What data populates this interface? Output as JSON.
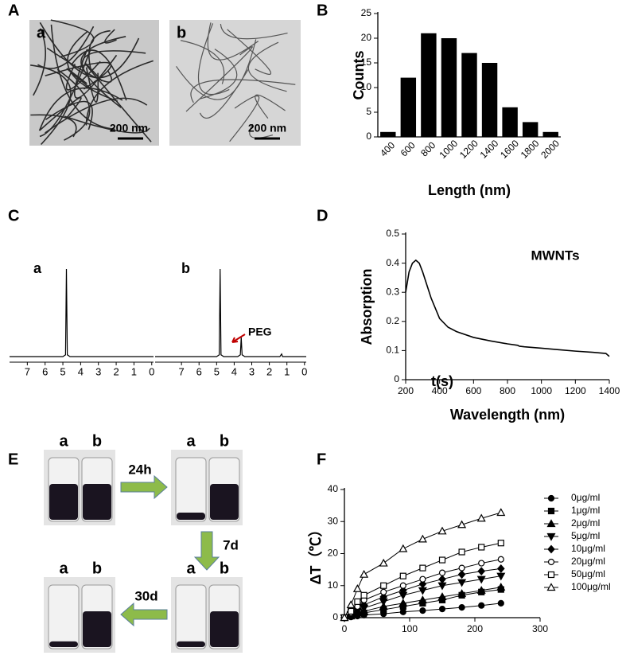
{
  "panel_a": {
    "panel": "A",
    "images": [
      {
        "label": "a",
        "scale_bar": "200 nm"
      },
      {
        "label": "b",
        "scale_bar": "200 nm"
      }
    ]
  },
  "panel_e": {
    "panel": "E",
    "vial_labels": [
      "a",
      "b"
    ],
    "steps": [
      "24h",
      "7d",
      "30d"
    ]
  },
  "chart_data": [
    {
      "type": "bar",
      "panel": "B",
      "xlabel": "Length (nm)",
      "ylabel": "Counts",
      "categories": [
        "400",
        "600",
        "800",
        "1000",
        "1200",
        "1400",
        "1600",
        "1800",
        "2000"
      ],
      "values": [
        1,
        12,
        21,
        20,
        17,
        15,
        6,
        3,
        1
      ],
      "color": "#000000",
      "ylim": [
        0,
        25
      ],
      "yticks": [
        0,
        5,
        10,
        15,
        20,
        25
      ]
    },
    {
      "type": "spectrum",
      "panel": "C",
      "label": "a",
      "color": "#000000",
      "x": [
        8.0,
        5.0,
        4.85,
        4.8,
        4.75,
        4.6,
        -0.1
      ],
      "values": [
        0,
        0,
        2,
        100,
        2,
        0,
        0
      ],
      "xlim": [
        8.0,
        -0.1
      ],
      "ylim": [
        0,
        100
      ],
      "xticks": [
        7,
        6,
        5,
        4,
        3,
        2,
        1,
        0
      ]
    },
    {
      "type": "spectrum",
      "label": "b",
      "color": "#000000",
      "annotation": "PEG",
      "annotation_color": "#c00000",
      "x": [
        8.5,
        5.0,
        4.85,
        4.8,
        4.75,
        4.6,
        3.8,
        3.65,
        3.6,
        3.55,
        3.4,
        1.4,
        1.3,
        1.25,
        1.2,
        -0.1
      ],
      "values": [
        0,
        0,
        2,
        100,
        2,
        0,
        0,
        2,
        22,
        2,
        0,
        0,
        3,
        0,
        0,
        0
      ],
      "xlim": [
        8.5,
        -0.1
      ],
      "ylim": [
        0,
        100
      ],
      "xticks": [
        7,
        6,
        5,
        4,
        3,
        2,
        1,
        0
      ]
    },
    {
      "type": "line",
      "panel": "D",
      "xlabel": "Wavelength (nm)",
      "ylabel": "Absorption",
      "annotation": "MWNTs",
      "color": "#000000",
      "x": [
        200,
        220,
        240,
        260,
        280,
        300,
        350,
        400,
        450,
        500,
        600,
        700,
        800,
        860,
        870,
        900,
        1000,
        1100,
        1200,
        1300,
        1380,
        1400
      ],
      "values": [
        0.3,
        0.37,
        0.4,
        0.41,
        0.4,
        0.37,
        0.28,
        0.21,
        0.18,
        0.165,
        0.145,
        0.133,
        0.123,
        0.118,
        0.115,
        0.113,
        0.108,
        0.103,
        0.098,
        0.094,
        0.09,
        0.08
      ],
      "xlim": [
        200,
        1400
      ],
      "ylim": [
        0,
        0.5
      ],
      "xticks": [
        200,
        400,
        600,
        800,
        1000,
        1200,
        1400
      ],
      "yticks": [
        0,
        0.1,
        0.2,
        0.3,
        0.4,
        0.5
      ]
    },
    {
      "type": "line",
      "panel": "F",
      "xlabel": "t(s)",
      "ylabel": "ΔT（℃）",
      "x": [
        0,
        10,
        20,
        30,
        60,
        90,
        120,
        150,
        180,
        210,
        240
      ],
      "xlim": [
        0,
        300
      ],
      "ylim": [
        0,
        40
      ],
      "xticks": [
        0,
        100,
        200,
        300
      ],
      "yticks": [
        0,
        10,
        20,
        30,
        40
      ],
      "series": [
        {
          "name": "0μg/ml",
          "color": "#000000",
          "marker": "circle",
          "values": [
            0,
            0.2,
            0.5,
            0.8,
            1.2,
            1.8,
            2.2,
            2.7,
            3.2,
            3.8,
            4.5
          ]
        },
        {
          "name": "1μg/ml",
          "color": "#000000",
          "marker": "square",
          "values": [
            0,
            0.5,
            1,
            1.5,
            2.5,
            3.5,
            4.5,
            5.5,
            7,
            8,
            8.8
          ]
        },
        {
          "name": "2μg/ml",
          "color": "#000000",
          "marker": "triangle",
          "values": [
            0,
            0.5,
            1.5,
            2,
            3.5,
            4.5,
            5.5,
            6.5,
            7.5,
            8.5,
            9.5
          ]
        },
        {
          "name": "5μg/ml",
          "color": "#000000",
          "marker": "down-triangle",
          "values": [
            0,
            1,
            2,
            3,
            5,
            7,
            8.5,
            10,
            11,
            12,
            13
          ]
        },
        {
          "name": "10μg/ml",
          "color": "#000000",
          "marker": "diamond",
          "values": [
            0,
            1,
            3,
            4,
            6.5,
            8.5,
            10.5,
            12,
            13.5,
            14.5,
            15.3
          ]
        },
        {
          "name": "20μg/ml",
          "color": "#000000",
          "marker": "open-circle",
          "values": [
            0,
            1.5,
            3.5,
            5.5,
            8,
            10,
            12,
            14,
            15.5,
            17,
            18.2
          ]
        },
        {
          "name": "50μg/ml",
          "color": "#000000",
          "marker": "open-square",
          "values": [
            0,
            2,
            5,
            7,
            10,
            13,
            15.5,
            18,
            20.5,
            22,
            23.3
          ]
        },
        {
          "name": "100μg/ml",
          "color": "#000000",
          "marker": "open-triangle",
          "values": [
            0,
            4,
            9,
            13.5,
            17,
            21.5,
            24.5,
            27,
            29,
            31,
            32.8
          ]
        }
      ]
    }
  ]
}
